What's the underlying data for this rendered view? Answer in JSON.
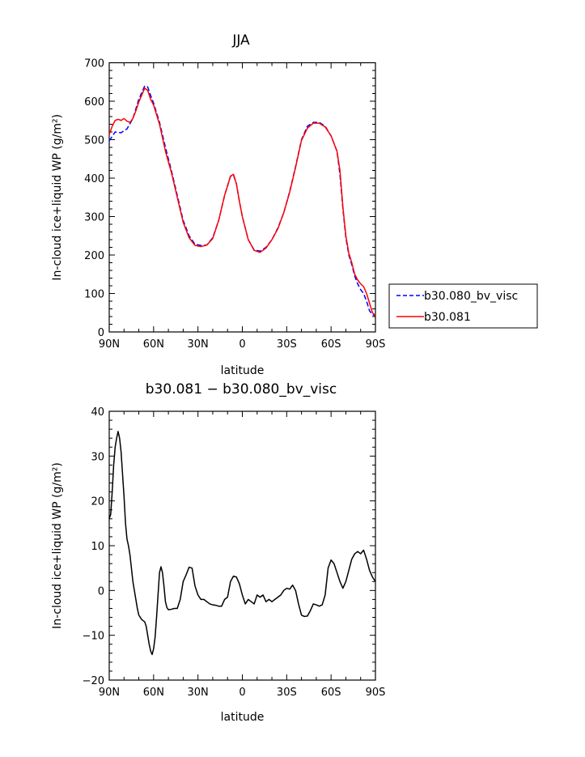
{
  "chart_data": [
    {
      "type": "line",
      "title": "JJA",
      "xlabel": "latitude",
      "ylabel": "In-cloud ice+liquid WP (g/m²)",
      "ylim": [
        0,
        700
      ],
      "xlim": [
        90,
        -90
      ],
      "x_ticks": [
        90,
        60,
        30,
        0,
        -30,
        -60,
        -90
      ],
      "x_tick_labels": [
        "90N",
        "60N",
        "30N",
        "0",
        "30S",
        "60S",
        "90S"
      ],
      "y_ticks": [
        0,
        100,
        200,
        300,
        400,
        500,
        600,
        700
      ],
      "y_tick_labels": [
        "0",
        "100",
        "200",
        "300",
        "400",
        "500",
        "600",
        "700"
      ],
      "legend_position": "right",
      "series": [
        {
          "name": "b30.080_bv_visc",
          "color": "#0000ff",
          "dash": "dashed",
          "x": [
            90,
            86,
            82,
            78,
            74,
            70,
            66,
            64,
            62,
            60,
            56,
            52,
            48,
            44,
            40,
            36,
            32,
            28,
            24,
            20,
            16,
            12,
            8,
            6,
            4,
            2,
            0,
            -4,
            -8,
            -12,
            -16,
            -20,
            -24,
            -28,
            -32,
            -36,
            -40,
            -44,
            -48,
            -52,
            -56,
            -60,
            -64,
            -66,
            -68,
            -70,
            -72,
            -74,
            -76,
            -78,
            -80,
            -82,
            -84,
            -86,
            -88,
            -90
          ],
          "y": [
            497,
            520,
            518,
            528,
            555,
            605,
            640,
            637,
            615,
            595,
            545,
            480,
            420,
            355,
            290,
            250,
            228,
            225,
            226,
            245,
            290,
            355,
            405,
            408,
            385,
            340,
            300,
            240,
            213,
            210,
            220,
            240,
            270,
            310,
            365,
            430,
            500,
            535,
            545,
            545,
            535,
            510,
            470,
            410,
            320,
            245,
            200,
            175,
            145,
            125,
            110,
            100,
            80,
            55,
            45,
            42
          ]
        },
        {
          "name": "b30.081",
          "color": "#ff0000",
          "dash": "solid",
          "x": [
            90,
            88,
            86,
            84,
            82,
            80,
            78,
            76,
            74,
            72,
            70,
            66,
            64,
            62,
            60,
            56,
            52,
            48,
            44,
            40,
            36,
            32,
            28,
            24,
            20,
            16,
            12,
            8,
            6,
            4,
            2,
            0,
            -4,
            -8,
            -12,
            -16,
            -20,
            -24,
            -28,
            -32,
            -36,
            -40,
            -44,
            -48,
            -52,
            -56,
            -60,
            -64,
            -66,
            -68,
            -70,
            -72,
            -74,
            -76,
            -78,
            -80,
            -82,
            -84,
            -86,
            -88,
            -90
          ],
          "y": [
            513,
            535,
            550,
            553,
            550,
            555,
            548,
            545,
            555,
            575,
            598,
            634,
            628,
            605,
            590,
            540,
            470,
            415,
            350,
            285,
            245,
            225,
            222,
            226,
            243,
            290,
            355,
            405,
            410,
            385,
            340,
            300,
            240,
            212,
            207,
            218,
            240,
            268,
            310,
            363,
            428,
            498,
            530,
            543,
            543,
            533,
            510,
            470,
            420,
            325,
            250,
            205,
            180,
            150,
            135,
            125,
            118,
            100,
            75,
            50,
            42
          ]
        }
      ]
    },
    {
      "type": "line",
      "title": "b30.081 − b30.080_bv_visc",
      "xlabel": "latitude",
      "ylabel": "In-cloud ice+liquid WP (g/m²)",
      "ylim": [
        -20,
        40
      ],
      "xlim": [
        90,
        -90
      ],
      "x_ticks": [
        90,
        60,
        30,
        0,
        -30,
        -60,
        -90
      ],
      "x_tick_labels": [
        "90N",
        "60N",
        "30N",
        "0",
        "30S",
        "60S",
        "90S"
      ],
      "y_ticks": [
        -20,
        -10,
        0,
        10,
        20,
        30,
        40
      ],
      "y_tick_labels": [
        "−20",
        "−10",
        "0",
        "10",
        "20",
        "30",
        "40"
      ],
      "series": [
        {
          "color": "#000000",
          "dash": "solid",
          "x": [
            90,
            89,
            88,
            87,
            86,
            85,
            84,
            83,
            82,
            80,
            79,
            78,
            77,
            76,
            74,
            73,
            72,
            71,
            70,
            68,
            66,
            65,
            64,
            63,
            62,
            61,
            60,
            59,
            58,
            56,
            55,
            54,
            53,
            52,
            51,
            50,
            48,
            46,
            44,
            42,
            40,
            38,
            36,
            34,
            33,
            32,
            30,
            28,
            26,
            24,
            22,
            20,
            18,
            16,
            14,
            12,
            10,
            8,
            6,
            4,
            2,
            0,
            -2,
            -4,
            -6,
            -8,
            -10,
            -12,
            -14,
            -16,
            -18,
            -20,
            -22,
            -24,
            -26,
            -28,
            -30,
            -32,
            -34,
            -36,
            -38,
            -40,
            -42,
            -44,
            -46,
            -48,
            -50,
            -52,
            -54,
            -56,
            -58,
            -60,
            -62,
            -64,
            -66,
            -68,
            -70,
            -72,
            -74,
            -76,
            -78,
            -80,
            -82,
            -84,
            -86,
            -88,
            -90
          ],
          "y": [
            16,
            17,
            22,
            28,
            32,
            34,
            35.5,
            34,
            31,
            21,
            15,
            11.5,
            10,
            8,
            2,
            0,
            -2,
            -4,
            -5.5,
            -6.5,
            -7,
            -8,
            -10,
            -12,
            -13.5,
            -14.3,
            -13,
            -10.5,
            -6,
            4,
            5.3,
            4,
            1,
            -2.5,
            -3.8,
            -4.3,
            -4.2,
            -4,
            -4,
            -2,
            2,
            3.5,
            5.2,
            5,
            3,
            1,
            -1,
            -2,
            -2,
            -2.5,
            -3,
            -3.2,
            -3.3,
            -3.5,
            -3.5,
            -2,
            -1.5,
            2,
            3.2,
            3,
            1.5,
            -1,
            -3,
            -2,
            -2.5,
            -3,
            -1,
            -1.5,
            -1,
            -2.5,
            -2,
            -2.5,
            -2,
            -1.5,
            -1,
            0,
            0.5,
            0.3,
            1.2,
            0,
            -3,
            -5.5,
            -5.8,
            -5.7,
            -4.5,
            -3,
            -3.2,
            -3.5,
            -3.2,
            -1,
            5,
            6.8,
            6,
            4,
            2,
            0.5,
            2,
            4.5,
            7,
            8.2,
            8.7,
            8.2,
            9,
            7,
            4.5,
            3,
            2
          ]
        }
      ]
    }
  ]
}
